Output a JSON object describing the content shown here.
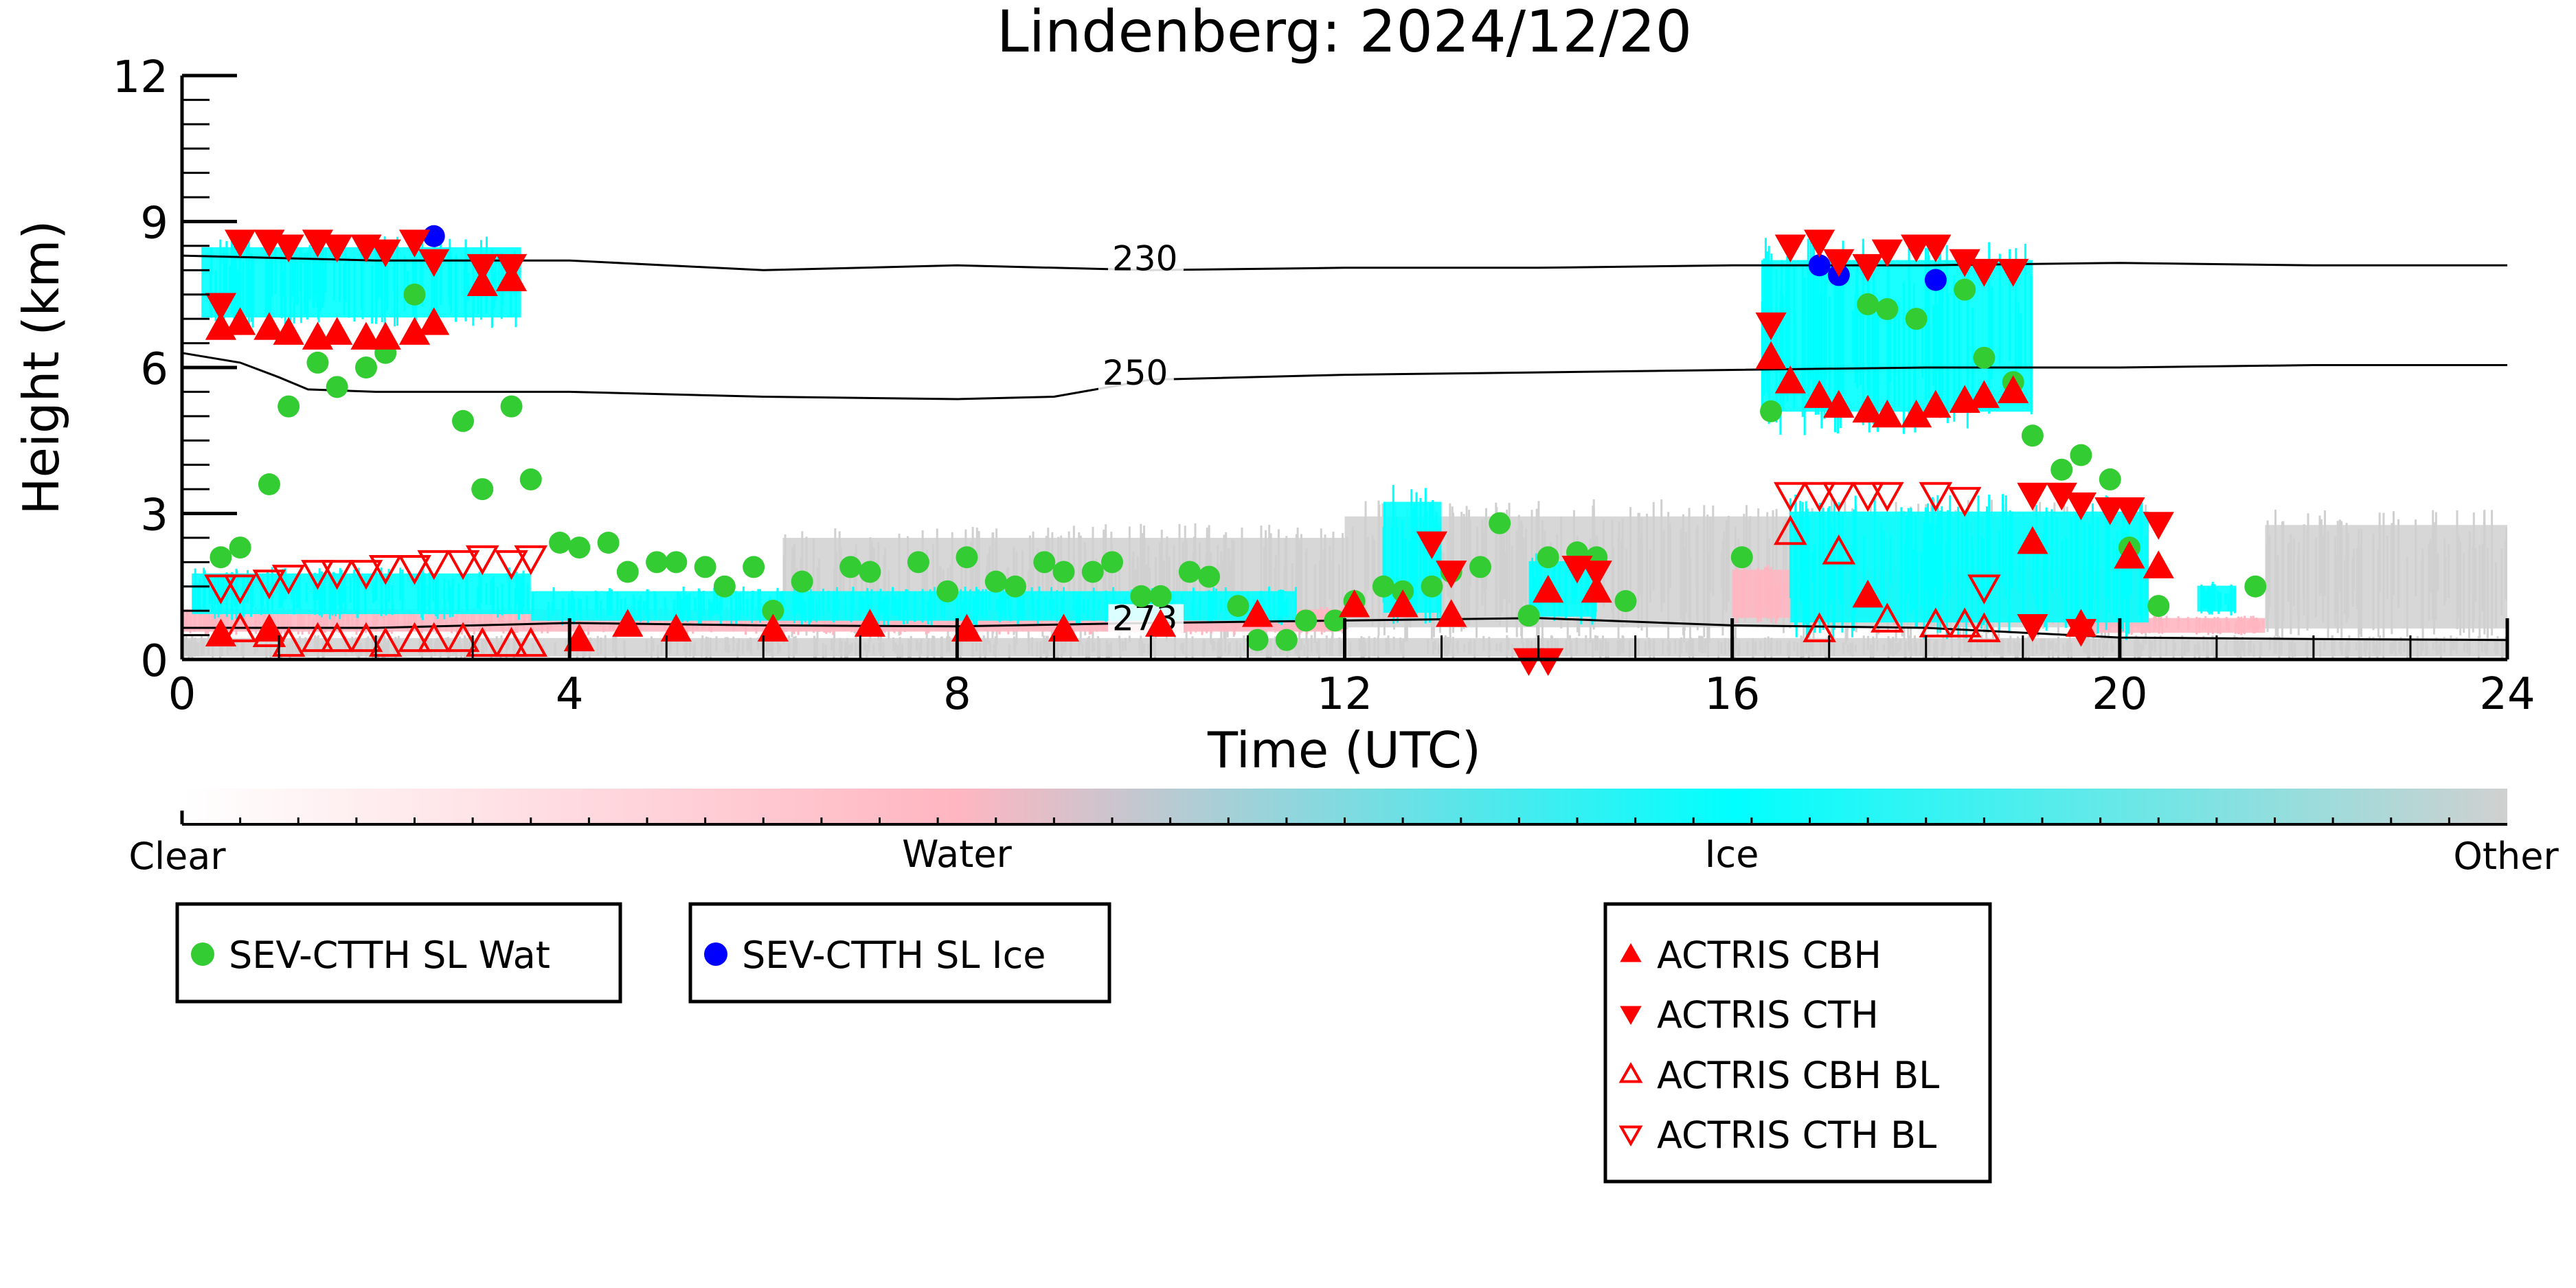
{
  "chart_data": {
    "type": "scatter",
    "title": "Lindenberg: 2024/12/20",
    "xlabel": "Time (UTC)",
    "ylabel": "Height (km)",
    "xlim": [
      0,
      24
    ],
    "ylim": [
      0,
      12
    ],
    "xticks": [
      "0",
      "4",
      "8",
      "12",
      "16",
      "20",
      "24"
    ],
    "yticks": [
      "0",
      "3",
      "6",
      "9",
      "12"
    ],
    "grid": false,
    "colors": {
      "clear": "#ffffff",
      "water": "#ffb6c1",
      "ice": "#00ffff",
      "other": "#d0d0d0",
      "sev_wat": "#33cc33",
      "sev_ice": "#0000ff",
      "actris": "#ff0000",
      "contour": "#000000"
    },
    "colorbar": {
      "labels": [
        "Clear",
        "Water",
        "Ice",
        "Other"
      ]
    },
    "contours": [
      {
        "label": "230",
        "label_at": [
          9.6,
          8.0
        ],
        "points": [
          [
            0,
            8.3
          ],
          [
            2,
            8.2
          ],
          [
            4,
            8.2
          ],
          [
            6,
            8.0
          ],
          [
            8,
            8.1
          ],
          [
            10,
            8.0
          ],
          [
            12,
            8.05
          ],
          [
            14,
            8.05
          ],
          [
            16,
            8.1
          ],
          [
            18,
            8.1
          ],
          [
            20,
            8.15
          ],
          [
            22,
            8.1
          ],
          [
            24,
            8.1
          ]
        ]
      },
      {
        "label": "250",
        "label_at": [
          9.5,
          5.65
        ],
        "points": [
          [
            0,
            6.3
          ],
          [
            0.6,
            6.1
          ],
          [
            1,
            5.8
          ],
          [
            1.3,
            5.55
          ],
          [
            2,
            5.5
          ],
          [
            4,
            5.5
          ],
          [
            6,
            5.4
          ],
          [
            8,
            5.35
          ],
          [
            9,
            5.4
          ],
          [
            10,
            5.75
          ],
          [
            12,
            5.85
          ],
          [
            14,
            5.9
          ],
          [
            16,
            5.95
          ],
          [
            18,
            6.0
          ],
          [
            20,
            6.0
          ],
          [
            22,
            6.05
          ],
          [
            24,
            6.05
          ]
        ]
      },
      {
        "label": "273",
        "label_at": [
          9.6,
          0.6
        ],
        "points": [
          [
            0,
            0.65
          ],
          [
            2,
            0.65
          ],
          [
            4,
            0.75
          ],
          [
            6,
            0.7
          ],
          [
            8,
            0.68
          ],
          [
            10,
            0.75
          ],
          [
            12,
            0.8
          ],
          [
            14,
            0.85
          ],
          [
            16,
            0.7
          ],
          [
            18,
            0.65
          ],
          [
            20,
            0.45
          ],
          [
            22,
            0.42
          ],
          [
            24,
            0.4
          ]
        ]
      }
    ],
    "cloud_regions": [
      {
        "phase": "ice",
        "x": [
          0.2,
          3.5
        ],
        "y": [
          6.8,
          8.7
        ]
      },
      {
        "phase": "ice",
        "x": [
          16.3,
          19.1
        ],
        "y": [
          4.6,
          8.7
        ]
      },
      {
        "phase": "ice",
        "x": [
          0.1,
          3.6
        ],
        "y": [
          0.8,
          1.9
        ]
      },
      {
        "phase": "ice",
        "x": [
          3.6,
          11.5
        ],
        "y": [
          0.7,
          1.5
        ]
      },
      {
        "phase": "ice",
        "x": [
          12.4,
          13.0
        ],
        "y": [
          0.6,
          3.6
        ]
      },
      {
        "phase": "ice",
        "x": [
          13.9,
          14.6
        ],
        "y": [
          0.7,
          2.2
        ]
      },
      {
        "phase": "ice",
        "x": [
          16.6,
          20.3
        ],
        "y": [
          0.4,
          3.4
        ]
      },
      {
        "phase": "ice",
        "x": [
          20.8,
          21.2
        ],
        "y": [
          0.9,
          1.6
        ]
      },
      {
        "phase": "water",
        "x": [
          0.0,
          12.0
        ],
        "y": [
          0.5,
          1.1
        ]
      },
      {
        "phase": "water",
        "x": [
          16.0,
          20.2
        ],
        "y": [
          0.7,
          2.0
        ]
      },
      {
        "phase": "water",
        "x": [
          19.6,
          21.5
        ],
        "y": [
          0.5,
          0.9
        ]
      },
      {
        "phase": "other",
        "x": [
          0.0,
          24.0
        ],
        "y": [
          0.0,
          0.5
        ]
      },
      {
        "phase": "other",
        "x": [
          6.2,
          12.0
        ],
        "y": [
          0.3,
          2.8
        ]
      },
      {
        "phase": "other",
        "x": [
          12.0,
          20.3
        ],
        "y": [
          0.3,
          3.3
        ]
      },
      {
        "phase": "other",
        "x": [
          21.5,
          24.0
        ],
        "y": [
          0.3,
          3.1
        ]
      }
    ],
    "series": [
      {
        "name": "SEV-CTTH SL Wat",
        "marker": "circle",
        "points": [
          [
            0.4,
            2.1
          ],
          [
            0.6,
            2.3
          ],
          [
            0.9,
            3.6
          ],
          [
            1.1,
            5.2
          ],
          [
            1.4,
            6.1
          ],
          [
            1.6,
            5.6
          ],
          [
            1.9,
            6.0
          ],
          [
            2.1,
            6.3
          ],
          [
            2.4,
            7.5
          ],
          [
            2.9,
            4.9
          ],
          [
            3.1,
            3.5
          ],
          [
            3.4,
            5.2
          ],
          [
            3.6,
            3.7
          ],
          [
            3.9,
            2.4
          ],
          [
            4.1,
            2.3
          ],
          [
            4.4,
            2.4
          ],
          [
            4.6,
            1.8
          ],
          [
            4.9,
            2.0
          ],
          [
            5.1,
            2.0
          ],
          [
            5.4,
            1.9
          ],
          [
            5.6,
            1.5
          ],
          [
            5.9,
            1.9
          ],
          [
            6.1,
            1.0
          ],
          [
            6.4,
            1.6
          ],
          [
            6.9,
            1.9
          ],
          [
            7.1,
            1.8
          ],
          [
            7.6,
            2.0
          ],
          [
            7.9,
            1.4
          ],
          [
            8.1,
            2.1
          ],
          [
            8.4,
            1.6
          ],
          [
            8.6,
            1.5
          ],
          [
            8.9,
            2.0
          ],
          [
            9.1,
            1.8
          ],
          [
            9.4,
            1.8
          ],
          [
            9.6,
            2.0
          ],
          [
            9.9,
            1.3
          ],
          [
            10.1,
            1.3
          ],
          [
            10.4,
            1.8
          ],
          [
            10.6,
            1.7
          ],
          [
            10.9,
            1.1
          ],
          [
            11.1,
            0.4
          ],
          [
            11.4,
            0.4
          ],
          [
            11.6,
            0.8
          ],
          [
            11.9,
            0.8
          ],
          [
            12.1,
            1.2
          ],
          [
            12.4,
            1.5
          ],
          [
            12.6,
            1.4
          ],
          [
            12.9,
            1.5
          ],
          [
            13.1,
            1.8
          ],
          [
            13.4,
            1.9
          ],
          [
            13.6,
            2.8
          ],
          [
            13.9,
            0.9
          ],
          [
            14.1,
            2.1
          ],
          [
            14.4,
            2.2
          ],
          [
            14.6,
            2.1
          ],
          [
            14.9,
            1.2
          ],
          [
            16.1,
            2.1
          ],
          [
            16.4,
            5.1
          ],
          [
            17.4,
            7.3
          ],
          [
            17.6,
            7.2
          ],
          [
            17.9,
            7.0
          ],
          [
            18.4,
            7.6
          ],
          [
            18.6,
            6.2
          ],
          [
            18.9,
            5.7
          ],
          [
            19.1,
            4.6
          ],
          [
            19.4,
            3.9
          ],
          [
            19.6,
            4.2
          ],
          [
            19.9,
            3.7
          ],
          [
            20.1,
            2.3
          ],
          [
            20.4,
            1.1
          ],
          [
            21.4,
            1.5
          ]
        ]
      },
      {
        "name": "SEV-CTTH SL Ice",
        "marker": "circle",
        "points": [
          [
            2.6,
            8.7
          ],
          [
            16.9,
            8.1
          ],
          [
            17.1,
            7.9
          ],
          [
            18.1,
            7.8
          ]
        ]
      },
      {
        "name": "ACTRIS CBH",
        "marker": "triangle-up",
        "points": [
          [
            0.4,
            6.8
          ],
          [
            0.6,
            6.9
          ],
          [
            0.9,
            6.8
          ],
          [
            1.1,
            6.7
          ],
          [
            1.4,
            6.6
          ],
          [
            1.6,
            6.7
          ],
          [
            1.9,
            6.6
          ],
          [
            2.1,
            6.6
          ],
          [
            2.4,
            6.7
          ],
          [
            2.6,
            6.9
          ],
          [
            3.1,
            7.7
          ],
          [
            3.4,
            7.8
          ],
          [
            0.4,
            0.5
          ],
          [
            0.9,
            0.6
          ],
          [
            4.1,
            0.4
          ],
          [
            4.6,
            0.7
          ],
          [
            5.1,
            0.6
          ],
          [
            6.1,
            0.6
          ],
          [
            7.1,
            0.7
          ],
          [
            8.1,
            0.6
          ],
          [
            9.1,
            0.6
          ],
          [
            10.1,
            0.7
          ],
          [
            11.1,
            0.9
          ],
          [
            12.1,
            1.1
          ],
          [
            12.6,
            1.1
          ],
          [
            13.1,
            0.9
          ],
          [
            14.1,
            1.4
          ],
          [
            14.6,
            1.4
          ],
          [
            16.4,
            6.2
          ],
          [
            16.6,
            5.7
          ],
          [
            16.9,
            5.4
          ],
          [
            17.1,
            5.2
          ],
          [
            17.4,
            5.1
          ],
          [
            17.6,
            5.0
          ],
          [
            17.9,
            5.0
          ],
          [
            18.1,
            5.2
          ],
          [
            18.4,
            5.3
          ],
          [
            18.6,
            5.4
          ],
          [
            18.9,
            5.5
          ],
          [
            17.4,
            1.3
          ],
          [
            19.1,
            2.4
          ],
          [
            19.6,
            0.7
          ],
          [
            20.1,
            2.1
          ],
          [
            20.4,
            1.9
          ]
        ]
      },
      {
        "name": "ACTRIS CTH",
        "marker": "triangle-down",
        "points": [
          [
            0.4,
            7.3
          ],
          [
            0.6,
            8.6
          ],
          [
            0.9,
            8.6
          ],
          [
            1.1,
            8.5
          ],
          [
            1.4,
            8.6
          ],
          [
            1.6,
            8.5
          ],
          [
            1.9,
            8.5
          ],
          [
            2.1,
            8.4
          ],
          [
            2.4,
            8.6
          ],
          [
            2.6,
            8.2
          ],
          [
            3.1,
            8.1
          ],
          [
            3.4,
            8.1
          ],
          [
            12.9,
            2.4
          ],
          [
            13.1,
            1.8
          ],
          [
            13.9,
            0.0
          ],
          [
            14.1,
            0.0
          ],
          [
            14.4,
            1.9
          ],
          [
            14.6,
            1.8
          ],
          [
            16.4,
            6.9
          ],
          [
            16.6,
            8.5
          ],
          [
            16.9,
            8.6
          ],
          [
            17.1,
            8.2
          ],
          [
            17.4,
            8.1
          ],
          [
            17.6,
            8.4
          ],
          [
            17.9,
            8.5
          ],
          [
            18.1,
            8.5
          ],
          [
            18.4,
            8.2
          ],
          [
            18.6,
            8.0
          ],
          [
            18.9,
            8.0
          ],
          [
            19.1,
            3.4
          ],
          [
            19.4,
            3.4
          ],
          [
            19.6,
            3.2
          ],
          [
            19.9,
            3.1
          ],
          [
            20.1,
            3.1
          ],
          [
            20.4,
            2.8
          ],
          [
            19.1,
            0.7
          ],
          [
            19.6,
            0.6
          ]
        ]
      },
      {
        "name": "ACTRIS CBH BL",
        "marker": "triangle-up-open",
        "points": [
          [
            0.6,
            0.6
          ],
          [
            0.9,
            0.5
          ],
          [
            1.1,
            0.3
          ],
          [
            1.4,
            0.4
          ],
          [
            1.6,
            0.4
          ],
          [
            1.9,
            0.4
          ],
          [
            2.1,
            0.3
          ],
          [
            2.4,
            0.4
          ],
          [
            2.6,
            0.4
          ],
          [
            2.9,
            0.4
          ],
          [
            3.1,
            0.3
          ],
          [
            3.4,
            0.3
          ],
          [
            3.6,
            0.3
          ],
          [
            16.6,
            2.6
          ],
          [
            16.9,
            0.6
          ],
          [
            17.1,
            2.2
          ],
          [
            17.6,
            0.8
          ],
          [
            18.1,
            0.7
          ],
          [
            18.4,
            0.7
          ],
          [
            18.6,
            0.6
          ]
        ]
      },
      {
        "name": "ACTRIS CTH BL",
        "marker": "triangle-down-open",
        "points": [
          [
            0.4,
            1.5
          ],
          [
            0.6,
            1.5
          ],
          [
            0.9,
            1.6
          ],
          [
            1.1,
            1.7
          ],
          [
            1.4,
            1.8
          ],
          [
            1.6,
            1.8
          ],
          [
            1.9,
            1.8
          ],
          [
            2.1,
            1.9
          ],
          [
            2.4,
            1.9
          ],
          [
            2.6,
            2.0
          ],
          [
            2.9,
            2.0
          ],
          [
            3.1,
            2.1
          ],
          [
            3.4,
            2.0
          ],
          [
            3.6,
            2.1
          ],
          [
            16.6,
            3.4
          ],
          [
            16.9,
            3.4
          ],
          [
            17.1,
            3.4
          ],
          [
            17.4,
            3.4
          ],
          [
            17.6,
            3.4
          ],
          [
            18.1,
            3.4
          ],
          [
            18.4,
            3.3
          ],
          [
            18.6,
            1.5
          ]
        ]
      }
    ],
    "legends": [
      {
        "entries": [
          "SEV-CTTH SL Wat"
        ]
      },
      {
        "entries": [
          "SEV-CTTH SL Ice"
        ]
      },
      {
        "entries": [
          "ACTRIS CBH",
          "ACTRIS CTH",
          "ACTRIS CBH BL",
          "ACTRIS CTH BL"
        ]
      }
    ]
  }
}
